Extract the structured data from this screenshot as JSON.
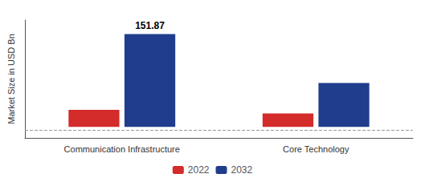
{
  "chart_data": {
    "type": "bar",
    "ylabel": "Market Size in USD Bn",
    "categories": [
      "Communication Infrastructure",
      "Core Technology"
    ],
    "series": [
      {
        "name": "2022",
        "color": "#d42b2b",
        "values": [
          28.0,
          22.0
        ]
      },
      {
        "name": "2032",
        "color": "#1f3d8c",
        "values": [
          151.87,
          72.0
        ]
      }
    ],
    "annotations": [
      {
        "text": "151.87",
        "category": "Communication Infrastructure",
        "series": "2032"
      }
    ],
    "hlines": [
      {
        "y": -5,
        "color": "#999999",
        "line_style": "dashed"
      }
    ],
    "ylim": [
      -18,
      175
    ],
    "yticks": [],
    "tick_labels": "x",
    "grid": false,
    "legend": "bottom"
  }
}
